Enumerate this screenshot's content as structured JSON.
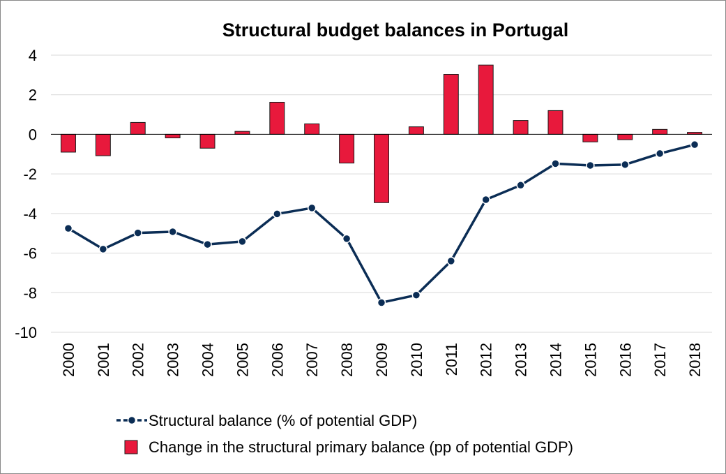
{
  "chart_data": {
    "type": "bar",
    "title": "Structural budget balances in Portugal",
    "xlabel": "",
    "ylabel": "",
    "ylim": [
      -10,
      4
    ],
    "yticks": [
      4,
      2,
      0,
      -2,
      -4,
      -6,
      -8,
      -10
    ],
    "ytick_labels": [
      "4",
      "2",
      "0",
      "-2",
      "-4",
      "-6",
      "-8",
      "-10"
    ],
    "grid": true,
    "legend_position": "bottom",
    "categories": [
      "2000",
      "2001",
      "2002",
      "2003",
      "2004",
      "2005",
      "2006",
      "2007",
      "2008",
      "2009",
      "2010",
      "2011",
      "2012",
      "2013",
      "2014",
      "2015",
      "2016",
      "2017",
      "2018"
    ],
    "series": [
      {
        "name": "Structural balance (% of potential GDP)",
        "kind": "line",
        "color": "#0b2d55",
        "values": [
          -4.75,
          -5.8,
          -4.98,
          -4.92,
          -5.56,
          -5.41,
          -4.02,
          -3.72,
          -5.27,
          -8.5,
          -8.12,
          -6.4,
          -3.3,
          -2.57,
          -1.48,
          -1.57,
          -1.53,
          -0.97,
          -0.52
        ]
      },
      {
        "name": "Change in the structural primary balance (pp of potential GDP)",
        "kind": "bar",
        "color": "#e8193c",
        "values": [
          -0.9,
          -1.08,
          0.6,
          -0.18,
          -0.7,
          0.15,
          1.62,
          0.53,
          -1.45,
          -3.45,
          0.38,
          3.03,
          3.5,
          0.7,
          1.2,
          -0.38,
          -0.27,
          0.25,
          0.1
        ]
      }
    ]
  }
}
